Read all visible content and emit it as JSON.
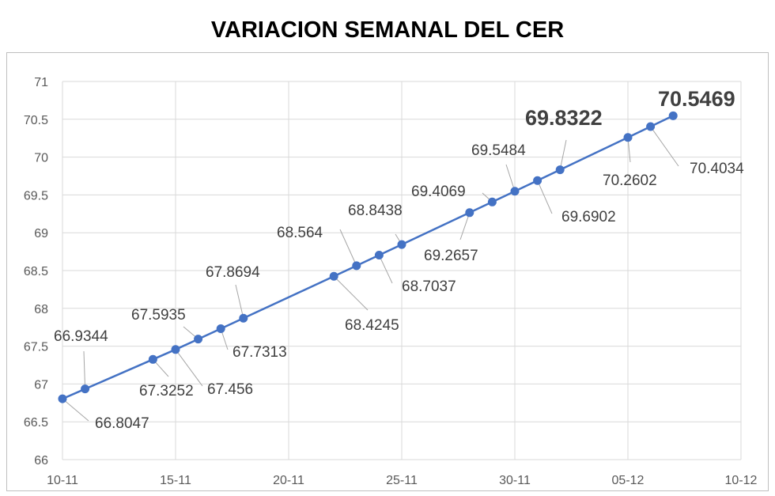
{
  "chart_data": {
    "type": "line",
    "title": "VARIACION SEMANAL DEL CER",
    "xlabel": "",
    "ylabel": "",
    "x_tick_labels": [
      "10-11",
      "15-11",
      "20-11",
      "25-11",
      "30-11",
      "05-12",
      "10-12"
    ],
    "x_range_days": [
      0,
      30
    ],
    "y_tick_labels": [
      "66",
      "66.5",
      "67",
      "67.5",
      "68",
      "68.5",
      "69",
      "69.5",
      "70",
      "70.5",
      "71"
    ],
    "ylim": [
      66,
      71
    ],
    "grid": true,
    "line_color": "#4472c4",
    "series": [
      {
        "points": [
          {
            "x": "10-11",
            "y": 66.8047,
            "label": "66.8047"
          },
          {
            "x": "11-11",
            "y": 66.9344,
            "label": "66.9344"
          },
          {
            "x": "14-11",
            "y": 67.3252,
            "label": "67.3252"
          },
          {
            "x": "15-11",
            "y": 67.456,
            "label": "67.456"
          },
          {
            "x": "16-11",
            "y": 67.5935,
            "label": "67.5935"
          },
          {
            "x": "17-11",
            "y": 67.7313,
            "label": "67.7313"
          },
          {
            "x": "18-11",
            "y": 67.8694,
            "label": "67.8694"
          },
          {
            "x": "22-11",
            "y": 68.4245,
            "label": "68.4245"
          },
          {
            "x": "23-11",
            "y": 68.564,
            "label": "68.564"
          },
          {
            "x": "24-11",
            "y": 68.7037,
            "label": "68.7037"
          },
          {
            "x": "25-11",
            "y": 68.8438,
            "label": "68.8438"
          },
          {
            "x": "28-11",
            "y": 69.2657,
            "label": "69.2657"
          },
          {
            "x": "29-11",
            "y": 69.4069,
            "label": "69.4069"
          },
          {
            "x": "30-11",
            "y": 69.5484,
            "label": "69.5484"
          },
          {
            "x": "01-12",
            "y": 69.6902,
            "label": "69.6902"
          },
          {
            "x": "02-12",
            "y": 69.8322,
            "label": "69.8322",
            "emphasis": true
          },
          {
            "x": "05-12",
            "y": 70.2602,
            "label": "70.2602"
          },
          {
            "x": "06-12",
            "y": 70.4034,
            "label": "70.4034"
          },
          {
            "x": "07-12",
            "y": 70.5469,
            "label": "70.5469",
            "emphasis": true
          }
        ]
      }
    ]
  }
}
